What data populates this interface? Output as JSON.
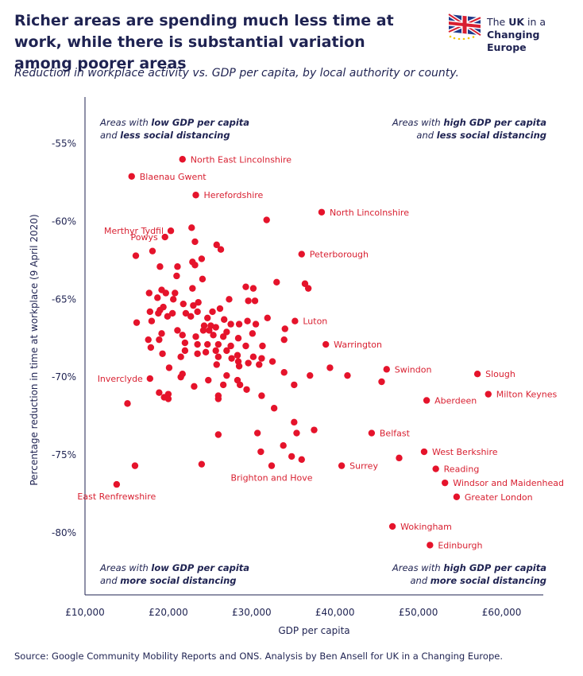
{
  "header": {
    "title": "Richer areas are spending much less time at work, while there is substantial variation among poorer areas",
    "subtitle": "Reduction in workplace activity vs. GDP per capita, by local authority or county.",
    "source": "Source: Google Community Mobility Reports and ONS. Analysis by Ben Ansell for UK in a Changing Europe.",
    "logo": {
      "line1_pre": "The ",
      "line1_bold": "UK",
      "line1_post": " in a",
      "line2": "Changing Europe",
      "icon": "union-flag-stars-icon"
    }
  },
  "colors": {
    "points": "#e5132b",
    "labels": "#d81f30",
    "text": "#1f2352",
    "axis": "#1f2352"
  },
  "chart_data": {
    "type": "scatter",
    "xlabel": "GDP per capita",
    "ylabel": "Percentage reduction in time at workplace (9 April 2020)",
    "xlim": [
      10000,
      65000
    ],
    "ylim": [
      -84,
      -52
    ],
    "x_ticks": [
      10000,
      20000,
      30000,
      40000,
      50000,
      60000
    ],
    "x_tick_labels": [
      "£10,000",
      "£20,000",
      "£30,000",
      "£40,000",
      "£50,000",
      "£60,000"
    ],
    "y_ticks": [
      -55,
      -60,
      -65,
      -70,
      -75,
      -80
    ],
    "y_tick_labels": [
      "-55%",
      "-60%",
      "-65%",
      "-70%",
      "-75%",
      "-80%"
    ],
    "grid": false,
    "quadrant_notes": [
      {
        "position": "top-left",
        "lines": [
          [
            "Areas with ",
            "low GDP per capita"
          ],
          [
            "and ",
            "less social distancing"
          ]
        ]
      },
      {
        "position": "top-right",
        "lines": [
          [
            "Areas with ",
            "high GDP per capita"
          ],
          [
            "and ",
            "less social distancing"
          ]
        ]
      },
      {
        "position": "bottom-left",
        "lines": [
          [
            "Areas with ",
            "low GDP per capita"
          ],
          [
            "and ",
            "more social distancing"
          ]
        ]
      },
      {
        "position": "bottom-right",
        "lines": [
          [
            "Areas with ",
            "high GDP per capita"
          ],
          [
            "and ",
            "more social distancing"
          ]
        ]
      }
    ],
    "labeled_points": [
      {
        "label": "North East Lincolnshire",
        "x": 21700,
        "y": -56.0,
        "side": "right"
      },
      {
        "label": "Blaenau Gwent",
        "x": 15600,
        "y": -57.1,
        "side": "right"
      },
      {
        "label": "Herefordshire",
        "x": 23300,
        "y": -58.3,
        "side": "right"
      },
      {
        "label": "North Lincolnshire",
        "x": 38400,
        "y": -59.4,
        "side": "right"
      },
      {
        "label": "Merthyr Tydfil",
        "x": 20300,
        "y": -60.6,
        "side": "left"
      },
      {
        "label": "Powys",
        "x": 19600,
        "y": -61.0,
        "side": "left"
      },
      {
        "label": "Peterborough",
        "x": 36000,
        "y": -62.1,
        "side": "right"
      },
      {
        "label": "Luton",
        "x": 35200,
        "y": -66.4,
        "side": "right"
      },
      {
        "label": "Warrington",
        "x": 38900,
        "y": -67.9,
        "side": "right"
      },
      {
        "label": "Swindon",
        "x": 46200,
        "y": -69.5,
        "side": "right"
      },
      {
        "label": "Slough",
        "x": 57100,
        "y": -69.8,
        "side": "right"
      },
      {
        "label": "Inverclyde",
        "x": 17800,
        "y": -70.1,
        "side": "left"
      },
      {
        "label": "Milton Keynes",
        "x": 58400,
        "y": -71.1,
        "side": "right"
      },
      {
        "label": "Aberdeen",
        "x": 51000,
        "y": -71.5,
        "side": "right"
      },
      {
        "label": "Belfast",
        "x": 44400,
        "y": -73.6,
        "side": "right"
      },
      {
        "label": "West Berkshire",
        "x": 50700,
        "y": -74.8,
        "side": "right"
      },
      {
        "label": "Surrey",
        "x": 40800,
        "y": -75.7,
        "side": "right"
      },
      {
        "label": "Reading",
        "x": 52100,
        "y": -75.9,
        "side": "right"
      },
      {
        "label": "Brighton and Hove",
        "x": 32400,
        "y": -75.7,
        "side": "below"
      },
      {
        "label": "Windsor and Maidenhead",
        "x": 53200,
        "y": -76.8,
        "side": "right"
      },
      {
        "label": "East Renfrewshire",
        "x": 13800,
        "y": -76.9,
        "side": "below"
      },
      {
        "label": "Greater London",
        "x": 54600,
        "y": -77.7,
        "side": "right"
      },
      {
        "label": "Wokingham",
        "x": 46900,
        "y": -79.6,
        "side": "right"
      },
      {
        "label": "Edinburgh",
        "x": 51400,
        "y": -80.8,
        "side": "right"
      }
    ],
    "points": [
      [
        31800,
        -59.9
      ],
      [
        16100,
        -62.2
      ],
      [
        18100,
        -61.9
      ],
      [
        22800,
        -60.4
      ],
      [
        23200,
        -61.3
      ],
      [
        25800,
        -61.5
      ],
      [
        26300,
        -61.8
      ],
      [
        24000,
        -62.4
      ],
      [
        21100,
        -62.9
      ],
      [
        22900,
        -62.6
      ],
      [
        23200,
        -62.8
      ],
      [
        19000,
        -62.9
      ],
      [
        21000,
        -63.5
      ],
      [
        24100,
        -63.7
      ],
      [
        36400,
        -64.0
      ],
      [
        36800,
        -64.3
      ],
      [
        33000,
        -63.9
      ],
      [
        29300,
        -64.2
      ],
      [
        30200,
        -64.3
      ],
      [
        22900,
        -64.3
      ],
      [
        19200,
        -64.4
      ],
      [
        17700,
        -64.6
      ],
      [
        19700,
        -64.6
      ],
      [
        20800,
        -64.6
      ],
      [
        18700,
        -64.9
      ],
      [
        20600,
        -65.0
      ],
      [
        23600,
        -65.2
      ],
      [
        21800,
        -65.3
      ],
      [
        27300,
        -65.0
      ],
      [
        29600,
        -65.1
      ],
      [
        30400,
        -65.1
      ],
      [
        23000,
        -65.4
      ],
      [
        19400,
        -65.5
      ],
      [
        19000,
        -65.7
      ],
      [
        18800,
        -65.9
      ],
      [
        17800,
        -65.8
      ],
      [
        20500,
        -65.9
      ],
      [
        22100,
        -65.9
      ],
      [
        23500,
        -65.8
      ],
      [
        25300,
        -65.8
      ],
      [
        26200,
        -65.6
      ],
      [
        16200,
        -66.5
      ],
      [
        18000,
        -66.4
      ],
      [
        19900,
        -66.1
      ],
      [
        22700,
        -66.1
      ],
      [
        24700,
        -66.2
      ],
      [
        25100,
        -66.7
      ],
      [
        24300,
        -66.7
      ],
      [
        25700,
        -66.8
      ],
      [
        26700,
        -66.3
      ],
      [
        27500,
        -66.6
      ],
      [
        29500,
        -66.4
      ],
      [
        28500,
        -66.6
      ],
      [
        30500,
        -66.6
      ],
      [
        31900,
        -66.2
      ],
      [
        34000,
        -66.9
      ],
      [
        21100,
        -67.0
      ],
      [
        24200,
        -67.0
      ],
      [
        24900,
        -67.0
      ],
      [
        27000,
        -67.1
      ],
      [
        30100,
        -67.2
      ],
      [
        19200,
        -67.2
      ],
      [
        21700,
        -67.3
      ],
      [
        23300,
        -67.4
      ],
      [
        25400,
        -67.3
      ],
      [
        26600,
        -67.4
      ],
      [
        28400,
        -67.5
      ],
      [
        17600,
        -67.6
      ],
      [
        18900,
        -67.6
      ],
      [
        33900,
        -67.6
      ],
      [
        22000,
        -67.8
      ],
      [
        23500,
        -67.9
      ],
      [
        24700,
        -67.9
      ],
      [
        26000,
        -67.9
      ],
      [
        27500,
        -68.0
      ],
      [
        29300,
        -68.0
      ],
      [
        31300,
        -68.0
      ],
      [
        17900,
        -68.1
      ],
      [
        22000,
        -68.3
      ],
      [
        23500,
        -68.5
      ],
      [
        24500,
        -68.4
      ],
      [
        25700,
        -68.3
      ],
      [
        27000,
        -68.3
      ],
      [
        28300,
        -68.6
      ],
      [
        30200,
        -68.7
      ],
      [
        31200,
        -68.8
      ],
      [
        19300,
        -68.5
      ],
      [
        21500,
        -68.7
      ],
      [
        26000,
        -68.7
      ],
      [
        27600,
        -68.8
      ],
      [
        28400,
        -69.0
      ],
      [
        29600,
        -69.1
      ],
      [
        30900,
        -69.2
      ],
      [
        32500,
        -69.0
      ],
      [
        28500,
        -69.3
      ],
      [
        25800,
        -69.2
      ],
      [
        20100,
        -69.4
      ],
      [
        33900,
        -69.7
      ],
      [
        39400,
        -69.4
      ],
      [
        41500,
        -69.9
      ],
      [
        37000,
        -69.9
      ],
      [
        27000,
        -69.9
      ],
      [
        28300,
        -70.2
      ],
      [
        24800,
        -70.2
      ],
      [
        21500,
        -70.0
      ],
      [
        21700,
        -69.8
      ],
      [
        26600,
        -70.5
      ],
      [
        28600,
        -70.5
      ],
      [
        35100,
        -70.5
      ],
      [
        45600,
        -70.3
      ],
      [
        23100,
        -70.6
      ],
      [
        29400,
        -70.8
      ],
      [
        18900,
        -71.0
      ],
      [
        20000,
        -71.1
      ],
      [
        26000,
        -71.2
      ],
      [
        31200,
        -71.2
      ],
      [
        19500,
        -71.3
      ],
      [
        20000,
        -71.4
      ],
      [
        26000,
        -71.4
      ],
      [
        15100,
        -71.7
      ],
      [
        32700,
        -72.0
      ],
      [
        35100,
        -72.9
      ],
      [
        30700,
        -73.6
      ],
      [
        37500,
        -73.4
      ],
      [
        26000,
        -73.7
      ],
      [
        35400,
        -73.6
      ],
      [
        33800,
        -74.4
      ],
      [
        31100,
        -74.8
      ],
      [
        34800,
        -75.1
      ],
      [
        36000,
        -75.3
      ],
      [
        47700,
        -75.2
      ],
      [
        16000,
        -75.7
      ],
      [
        24000,
        -75.6
      ]
    ]
  }
}
